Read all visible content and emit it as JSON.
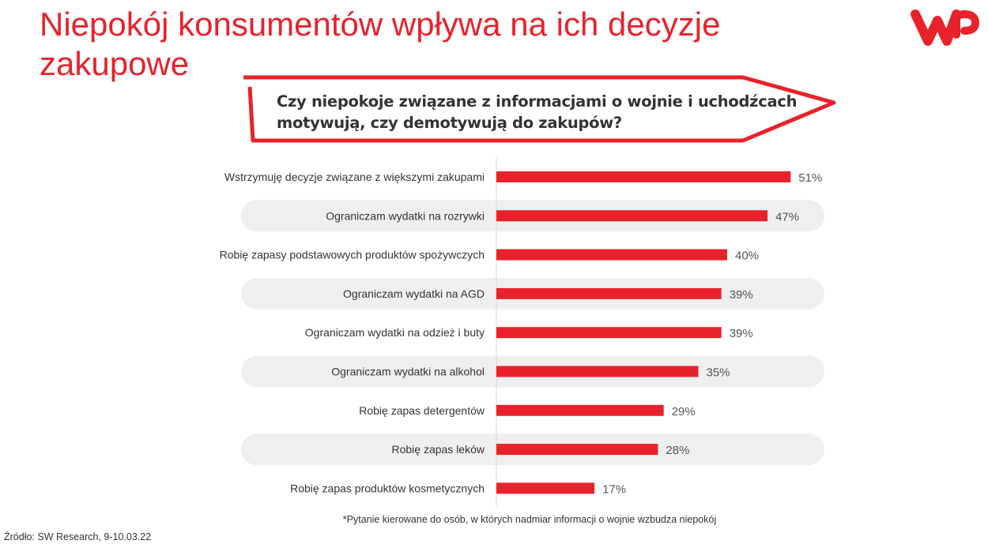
{
  "title": "Niepokój konsumentów wpływa na ich decyzje zakupowe",
  "logo": "WP",
  "question": "Czy niepokoje związane z informacjami  o wojnie i uchodźcach motywują, czy demotywują  do zakupów?",
  "footnote": "*Pytanie kierowane do osób, w których nadmiar informacji o wojnie wzbudza niepokój",
  "source": "Źródło: SW Research, 9-10.03.22",
  "colors": {
    "accent": "#e8222b",
    "row_band": "#efefef",
    "text": "#333333"
  },
  "chart_data": {
    "type": "bar",
    "orientation": "horizontal",
    "categories": [
      "Wstrzymuję decyzje związane z większymi zakupami",
      "Ograniczam wydatki na rozrywki",
      "Robię zapasy podstawowych produktów spożywczych",
      "Ograniczam wydatki na AGD",
      "Ograniczam wydatki na odzież i buty",
      "Ograniczam wydatki na alkohol",
      "Robię zapas detergentów",
      "Robię zapas leków",
      "Robię zapas produktów kosmetycznych"
    ],
    "values": [
      51,
      47,
      40,
      39,
      39,
      35,
      29,
      28,
      17
    ],
    "value_labels": [
      "51%",
      "47%",
      "40%",
      "39%",
      "39%",
      "35%",
      "29%",
      "28%",
      "17%"
    ],
    "unit": "%",
    "xlim": [
      0,
      60
    ],
    "grid": false,
    "bar_color": "#e8222b"
  }
}
